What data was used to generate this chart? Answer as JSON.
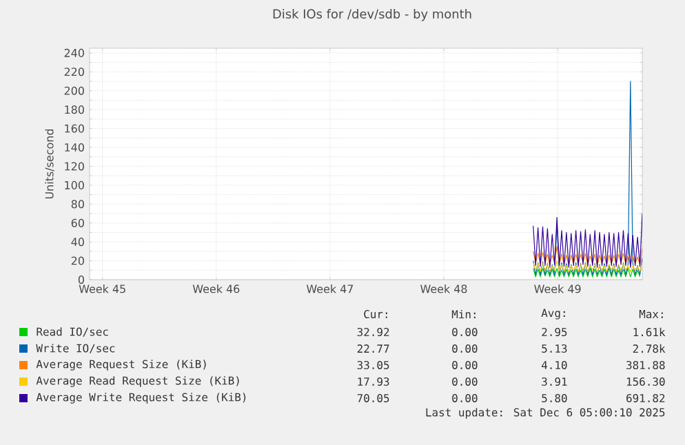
{
  "chart_data": {
    "type": "line",
    "title": "Disk IOs for /dev/sdb - by month",
    "ylabel": "Units/second",
    "xlim": [
      "2025-11-02T05:00",
      "2025-12-06T05:00"
    ],
    "ylim": [
      0,
      245
    ],
    "xticks": [
      {
        "value": "2025-11-03",
        "label": "Week 45"
      },
      {
        "value": "2025-11-10",
        "label": "Week 46"
      },
      {
        "value": "2025-11-17",
        "label": "Week 47"
      },
      {
        "value": "2025-11-24",
        "label": "Week 48"
      },
      {
        "value": "2025-12-01",
        "label": "Week 49"
      }
    ],
    "yticks": [
      0,
      {
        "value": 10,
        "label": null
      },
      20,
      {
        "value": 30,
        "label": null
      },
      40,
      {
        "value": 50,
        "label": null
      },
      60,
      {
        "value": 70,
        "label": null
      },
      80,
      {
        "value": 90,
        "label": null
      },
      100,
      {
        "value": 110,
        "label": null
      },
      120,
      {
        "value": 130,
        "label": null
      },
      140,
      {
        "value": 150,
        "label": null
      },
      160,
      {
        "value": 170,
        "label": null
      },
      180,
      {
        "value": 190,
        "label": null
      },
      200,
      {
        "value": 210,
        "label": null
      },
      220,
      {
        "value": 230,
        "label": null
      },
      240
    ],
    "grid": true,
    "legend": "bottom",
    "marker": "none",
    "line_style": "solid",
    "x": [
      "2025-11-29T12:00",
      "2025-11-29T15:30",
      "2025-11-29T19:00",
      "2025-11-29T22:30",
      "2025-11-30T02:00",
      "2025-11-30T05:30",
      "2025-11-30T09:00",
      "2025-11-30T12:30",
      "2025-11-30T16:00",
      "2025-11-30T19:30",
      "2025-11-30T23:00",
      "2025-12-01T02:30",
      "2025-12-01T06:00",
      "2025-12-01T09:30",
      "2025-12-01T13:00",
      "2025-12-01T16:30",
      "2025-12-01T20:00",
      "2025-12-01T23:30",
      "2025-12-02T03:00",
      "2025-12-02T06:30",
      "2025-12-02T10:00",
      "2025-12-02T13:30",
      "2025-12-02T17:00",
      "2025-12-02T20:30",
      "2025-12-03T00:00",
      "2025-12-03T03:30",
      "2025-12-03T07:00",
      "2025-12-03T10:30",
      "2025-12-03T14:00",
      "2025-12-03T17:30",
      "2025-12-03T21:00",
      "2025-12-04T00:30",
      "2025-12-04T04:00",
      "2025-12-04T07:30",
      "2025-12-04T11:00",
      "2025-12-04T14:30",
      "2025-12-04T18:00",
      "2025-12-04T21:30",
      "2025-12-05T01:00",
      "2025-12-05T04:30",
      "2025-12-05T08:00",
      "2025-12-05T11:30",
      "2025-12-05T15:00",
      "2025-12-05T18:30",
      "2025-12-05T22:00",
      "2025-12-06T01:30",
      "2025-12-06T05:00"
    ],
    "series": [
      {
        "name": "Read IO/sec",
        "color": "#00cc00",
        "values": [
          12,
          3,
          11,
          3,
          12,
          4,
          10,
          3,
          11,
          3,
          12,
          3,
          10,
          3,
          11,
          3,
          10,
          3,
          11,
          3,
          10,
          3,
          11,
          3,
          12,
          3,
          11,
          3,
          10,
          3,
          11,
          3,
          12,
          3,
          11,
          3,
          10,
          3,
          11,
          3,
          12,
          3,
          11,
          3,
          10,
          3,
          null
        ]
      },
      {
        "name": "Write IO/sec",
        "color": "#0066b3",
        "values": [
          20,
          5,
          18,
          5,
          19,
          5,
          17,
          5,
          16,
          5,
          60,
          5,
          18,
          5,
          17,
          5,
          16,
          5,
          18,
          5,
          17,
          5,
          18,
          5,
          16,
          5,
          17,
          5,
          16,
          5,
          17,
          5,
          16,
          5,
          17,
          5,
          16,
          5,
          18,
          5,
          16,
          210,
          17,
          5,
          15,
          5,
          23
        ]
      },
      {
        "name": "Average Request Size (KiB)",
        "color": "#ff8000",
        "values": [
          30,
          18,
          28,
          17,
          29,
          18,
          27,
          16,
          26,
          18,
          35,
          17,
          27,
          16,
          26,
          15,
          26,
          17,
          27,
          16,
          27,
          18,
          28,
          16,
          25,
          17,
          27,
          15,
          26,
          17,
          25,
          16,
          26,
          17,
          26,
          16,
          27,
          18,
          28,
          17,
          26,
          15,
          25,
          17,
          24,
          16,
          33
        ]
      },
      {
        "name": "Average Read Request Size (KiB)",
        "color": "#ffcc00",
        "values": [
          18,
          10,
          17,
          9,
          18,
          10,
          16,
          9,
          15,
          10,
          20,
          9,
          16,
          9,
          15,
          8,
          15,
          9,
          16,
          9,
          16,
          10,
          17,
          9,
          15,
          10,
          16,
          8,
          15,
          10,
          15,
          9,
          16,
          10,
          15,
          9,
          16,
          10,
          17,
          10,
          15,
          8,
          15,
          10,
          14,
          9,
          18
        ]
      },
      {
        "name": "Average Write Request Size (KiB)",
        "color": "#330099",
        "values": [
          57,
          15,
          55,
          14,
          56,
          15,
          54,
          13,
          48,
          16,
          66,
          15,
          52,
          14,
          50,
          13,
          49,
          15,
          52,
          14,
          51,
          16,
          53,
          14,
          48,
          15,
          52,
          13,
          50,
          15,
          48,
          14,
          50,
          15,
          49,
          14,
          50,
          16,
          52,
          15,
          49,
          13,
          47,
          15,
          45,
          14,
          70
        ]
      }
    ],
    "annotations": [
      "Cur:",
      "Min:",
      "Avg:",
      "Max:",
      "32.92",
      "0.00",
      "2.95",
      "1.61k",
      "22.77",
      "0.00",
      "5.13",
      "2.78k",
      "33.05",
      "0.00",
      "4.10",
      "381.88",
      "17.93",
      "0.00",
      "3.91",
      "156.30",
      "70.05",
      "0.00",
      "5.80",
      "691.82",
      "Last update: Sat Dec  6 05:00:10 2025"
    ]
  }
}
